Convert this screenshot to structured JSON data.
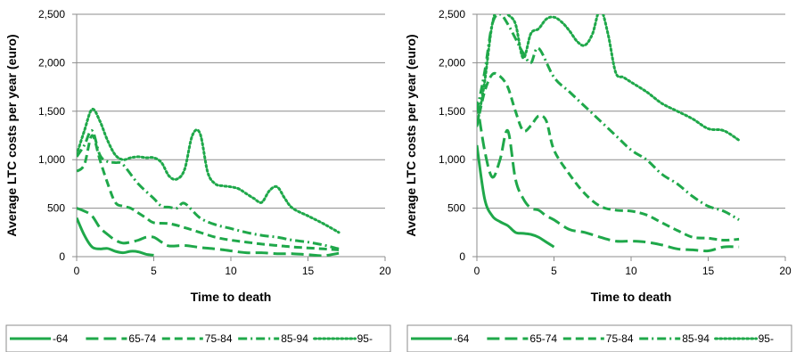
{
  "series_color": "#1fa84a",
  "chart_data": [
    {
      "type": "line",
      "title": "",
      "xlabel": "Time to death",
      "ylabel": "Average LTC costs per year (euro)",
      "xlim": [
        0,
        20
      ],
      "ylim": [
        0,
        2500
      ],
      "xticks": [
        0,
        5,
        10,
        15,
        20
      ],
      "yticks": [
        0,
        500,
        1000,
        1500,
        2000,
        2500
      ],
      "xtick_labels": [
        "0",
        "5",
        "10",
        "15",
        "20"
      ],
      "ytick_labels": [
        "0",
        "500",
        "1,000",
        "1,500",
        "2,000",
        "2,500"
      ],
      "grid": "horizontal",
      "legend_position": "bottom",
      "series": [
        {
          "name": "-64",
          "dash": "solid",
          "x": [
            0,
            0.5,
            1,
            1.5,
            2,
            2.5,
            3,
            3.5,
            4,
            4.5,
            5
          ],
          "y": [
            400,
            220,
            100,
            80,
            85,
            55,
            40,
            55,
            50,
            25,
            15
          ]
        },
        {
          "name": "65-74",
          "dash": "longdash",
          "x": [
            0,
            0.5,
            1,
            1.5,
            2,
            2.5,
            3,
            3.5,
            4,
            4.5,
            5,
            5.5,
            6,
            7,
            8,
            9,
            10,
            11,
            12,
            13,
            14,
            15,
            16,
            17
          ],
          "y": [
            500,
            470,
            420,
            300,
            230,
            170,
            140,
            150,
            170,
            200,
            200,
            150,
            110,
            115,
            95,
            80,
            60,
            40,
            40,
            30,
            30,
            20,
            10,
            35
          ]
        },
        {
          "name": "75-84",
          "dash": "dash",
          "x": [
            0,
            0.5,
            1,
            1.5,
            2,
            2.5,
            3,
            3.5,
            4,
            4.5,
            5,
            6,
            7,
            8,
            9,
            10,
            11,
            12,
            13,
            14,
            15,
            16,
            17
          ],
          "y": [
            880,
            950,
            1250,
            1000,
            760,
            560,
            520,
            500,
            450,
            400,
            350,
            340,
            300,
            250,
            200,
            170,
            150,
            130,
            115,
            100,
            90,
            80,
            70
          ]
        },
        {
          "name": "85-94",
          "dash": "dashdot",
          "x": [
            0,
            0.5,
            1,
            1.5,
            2,
            2.5,
            3,
            4,
            5,
            5.5,
            6,
            6.5,
            7,
            8,
            9,
            10,
            11,
            12,
            13,
            14,
            15,
            16,
            17
          ],
          "y": [
            1030,
            1150,
            1300,
            1050,
            980,
            970,
            950,
            750,
            600,
            520,
            510,
            500,
            550,
            400,
            330,
            290,
            250,
            220,
            200,
            170,
            150,
            120,
            80
          ]
        },
        {
          "name": "95-",
          "dash": "dot",
          "x": [
            0,
            0.5,
            1,
            1.5,
            2,
            2.5,
            3,
            3.5,
            4,
            4.5,
            5,
            5.5,
            6,
            6.5,
            7,
            7.5,
            8,
            8.5,
            9,
            9.5,
            10,
            10.5,
            11,
            11.5,
            12,
            12.5,
            13,
            13.5,
            14,
            15,
            16,
            17
          ],
          "y": [
            1050,
            1300,
            1520,
            1400,
            1200,
            1050,
            1000,
            1020,
            1030,
            1020,
            1020,
            970,
            830,
            800,
            900,
            1250,
            1270,
            870,
            750,
            730,
            720,
            700,
            650,
            600,
            560,
            680,
            720,
            600,
            500,
            420,
            340,
            250
          ]
        }
      ]
    },
    {
      "type": "line",
      "title": "",
      "xlabel": "Time to death",
      "ylabel": "Average LTC costs per year (euro)",
      "xlim": [
        0,
        20
      ],
      "ylim": [
        0,
        2500
      ],
      "xticks": [
        0,
        5,
        10,
        15,
        20
      ],
      "yticks": [
        0,
        500,
        1000,
        1500,
        2000,
        2500
      ],
      "xtick_labels": [
        "0",
        "5",
        "10",
        "15",
        "20"
      ],
      "ytick_labels": [
        "0",
        "500",
        "1,000",
        "1,500",
        "2,000",
        "2,500"
      ],
      "grid": "horizontal",
      "legend_position": "bottom",
      "series": [
        {
          "name": "-64",
          "dash": "solid",
          "x": [
            0,
            0.5,
            1,
            1.5,
            2,
            2.5,
            3,
            3.5,
            4,
            4.5,
            5
          ],
          "y": [
            1150,
            600,
            420,
            360,
            320,
            250,
            240,
            230,
            200,
            150,
            100
          ]
        },
        {
          "name": "65-74",
          "dash": "longdash",
          "x": [
            0,
            0.5,
            1,
            1.5,
            2,
            2.5,
            3,
            3.5,
            4,
            4.5,
            5,
            6,
            7,
            8,
            9,
            10,
            11,
            12,
            13,
            14,
            15,
            16,
            17
          ],
          "y": [
            1600,
            1100,
            820,
            1000,
            1300,
            800,
            600,
            500,
            480,
            420,
            380,
            280,
            250,
            200,
            160,
            160,
            150,
            120,
            80,
            70,
            60,
            100,
            100
          ]
        },
        {
          "name": "75-84",
          "dash": "dash",
          "x": [
            0,
            0.5,
            1,
            1.5,
            2,
            2.5,
            3,
            3.5,
            4,
            4.5,
            5,
            6,
            7,
            8,
            9,
            10,
            11,
            12,
            13,
            14,
            15,
            16,
            17
          ],
          "y": [
            1350,
            1700,
            1880,
            1860,
            1750,
            1500,
            1300,
            1350,
            1450,
            1400,
            1100,
            850,
            650,
            520,
            480,
            470,
            430,
            350,
            270,
            200,
            190,
            170,
            180
          ]
        },
        {
          "name": "85-94",
          "dash": "dashdot",
          "x": [
            0,
            0.5,
            1,
            1.5,
            2,
            2.5,
            3,
            3.5,
            4,
            5,
            6,
            7,
            8,
            9,
            10,
            11,
            12,
            13,
            14,
            15,
            16,
            17
          ],
          "y": [
            1500,
            1900,
            2400,
            2500,
            2400,
            2250,
            2100,
            2000,
            2150,
            1850,
            1700,
            1550,
            1400,
            1250,
            1100,
            1000,
            850,
            750,
            620,
            520,
            470,
            380
          ]
        },
        {
          "name": "95-",
          "dash": "dot",
          "x": [
            0,
            0.5,
            1,
            1.5,
            2,
            2.5,
            3,
            3.5,
            4,
            4.5,
            5,
            5.5,
            6,
            6.5,
            7,
            7.5,
            8,
            8.5,
            9,
            9.5,
            10,
            11,
            12,
            13,
            14,
            15,
            16,
            17
          ],
          "y": [
            1350,
            1800,
            2400,
            2600,
            2500,
            2400,
            2050,
            2300,
            2350,
            2450,
            2470,
            2420,
            2330,
            2220,
            2180,
            2300,
            2550,
            2300,
            1900,
            1850,
            1800,
            1700,
            1580,
            1500,
            1420,
            1320,
            1300,
            1200
          ]
        }
      ]
    }
  ]
}
